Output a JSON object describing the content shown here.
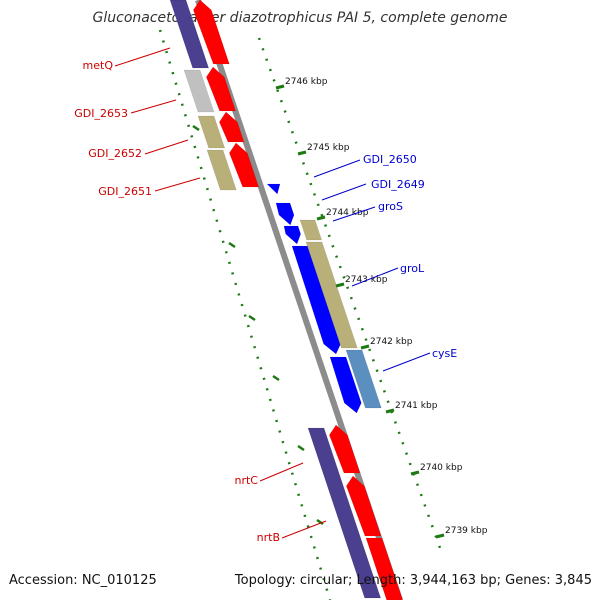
{
  "title": "Gluconacetobacter diazotrophicus PAI 5, complete genome",
  "footer": {
    "accession": "Accession: NC_010125",
    "summary": "Topology: circular; Length: 3,944,163 bp; Genes: 3,845"
  },
  "colors": {
    "backbone": "#8c8c8c",
    "ruler": "#1d7a12",
    "reverse_label": "#cc0000",
    "forward_label": "#0000cc",
    "red_gene": "#ff0000",
    "blue_gene": "#0000ff",
    "purple_gene": "#4b3f8f",
    "khaki_gene": "#b8b078",
    "gray_gene": "#c0c0c0",
    "steel_gene": "#5a8fc0"
  },
  "scale_ticks": [
    "2746 kbp",
    "2745 kbp",
    "2744 kbp",
    "2743 kbp",
    "2742 kbp",
    "2741 kbp",
    "2740 kbp",
    "2739 kbp"
  ],
  "gene_labels": {
    "reverse": [
      "metQ",
      "GDI_2653",
      "GDI_2652",
      "GDI_2651",
      "nrtC",
      "nrtB"
    ],
    "forward": [
      "GDI_2650",
      "GDI_2649",
      "groS",
      "groL",
      "cysE"
    ]
  }
}
